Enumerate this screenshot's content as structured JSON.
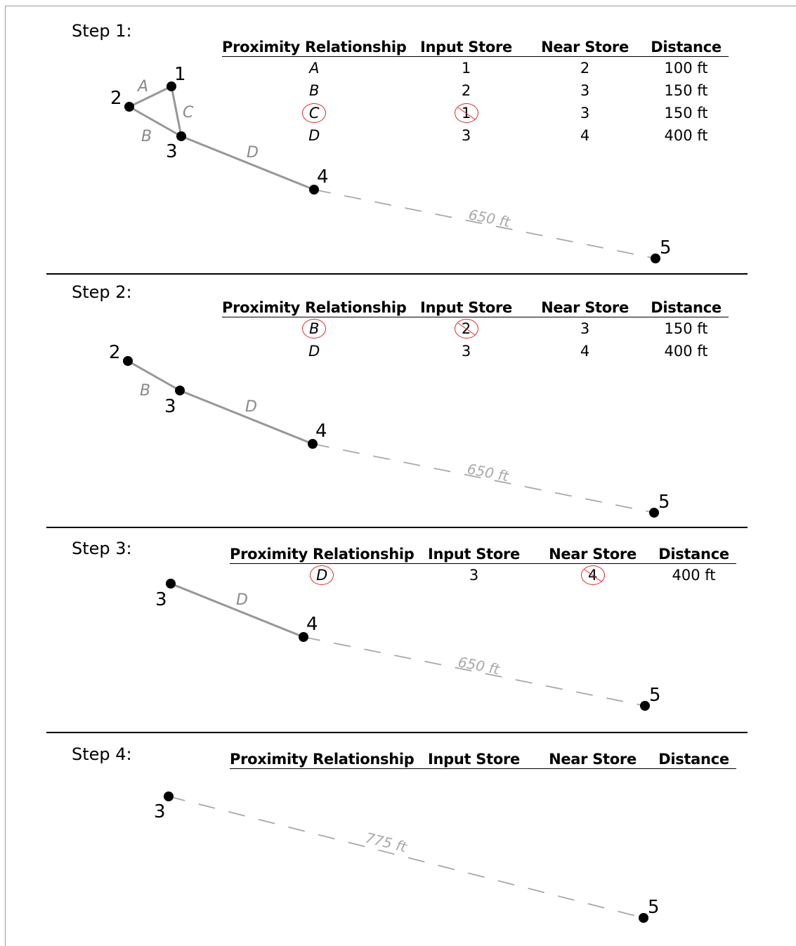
{
  "columns": [
    "Proximity Relationship",
    "Input Store",
    "Near Store",
    "Distance"
  ],
  "steps": [
    {
      "title": "Step 1:",
      "rows": [
        {
          "rel": "A",
          "input": "1",
          "near": "2",
          "dist": "100 ft",
          "marked": false
        },
        {
          "rel": "B",
          "input": "2",
          "near": "3",
          "dist": "150 ft",
          "marked": false
        },
        {
          "rel": "C",
          "input": "1",
          "near": "3",
          "dist": "150 ft",
          "marked": "input"
        },
        {
          "rel": "D",
          "input": "3",
          "near": "4",
          "dist": "400 ft",
          "marked": false
        }
      ],
      "diagram": {
        "store_labels": [
          "1",
          "2",
          "3",
          "4",
          "5"
        ],
        "edge_labels": [
          "A",
          "B",
          "C",
          "D"
        ],
        "far_distance": "650 ft"
      }
    },
    {
      "title": "Step 2:",
      "rows": [
        {
          "rel": "B",
          "input": "2",
          "near": "3",
          "dist": "150 ft",
          "marked": "input"
        },
        {
          "rel": "D",
          "input": "3",
          "near": "4",
          "dist": "400 ft",
          "marked": false
        }
      ],
      "diagram": {
        "store_labels": [
          "2",
          "3",
          "4",
          "5"
        ],
        "edge_labels": [
          "B",
          "D"
        ],
        "far_distance": "650 ft"
      }
    },
    {
      "title": "Step 3:",
      "rows": [
        {
          "rel": "D",
          "input": "3",
          "near": "4",
          "dist": "400 ft",
          "marked": "near"
        }
      ],
      "diagram": {
        "store_labels": [
          "3",
          "4",
          "5"
        ],
        "edge_labels": [
          "D"
        ],
        "far_distance": "650 ft"
      }
    },
    {
      "title": "Step 4:",
      "rows": [],
      "diagram": {
        "store_labels": [
          "3",
          "5"
        ],
        "edge_labels": [],
        "far_distance": "775 ft"
      }
    }
  ],
  "colors": {
    "edge": "#9b9595",
    "edge_label": "#8a8a8a",
    "dashed": "#a8a8a8",
    "mark": "#e0262a",
    "node": "#000000"
  }
}
